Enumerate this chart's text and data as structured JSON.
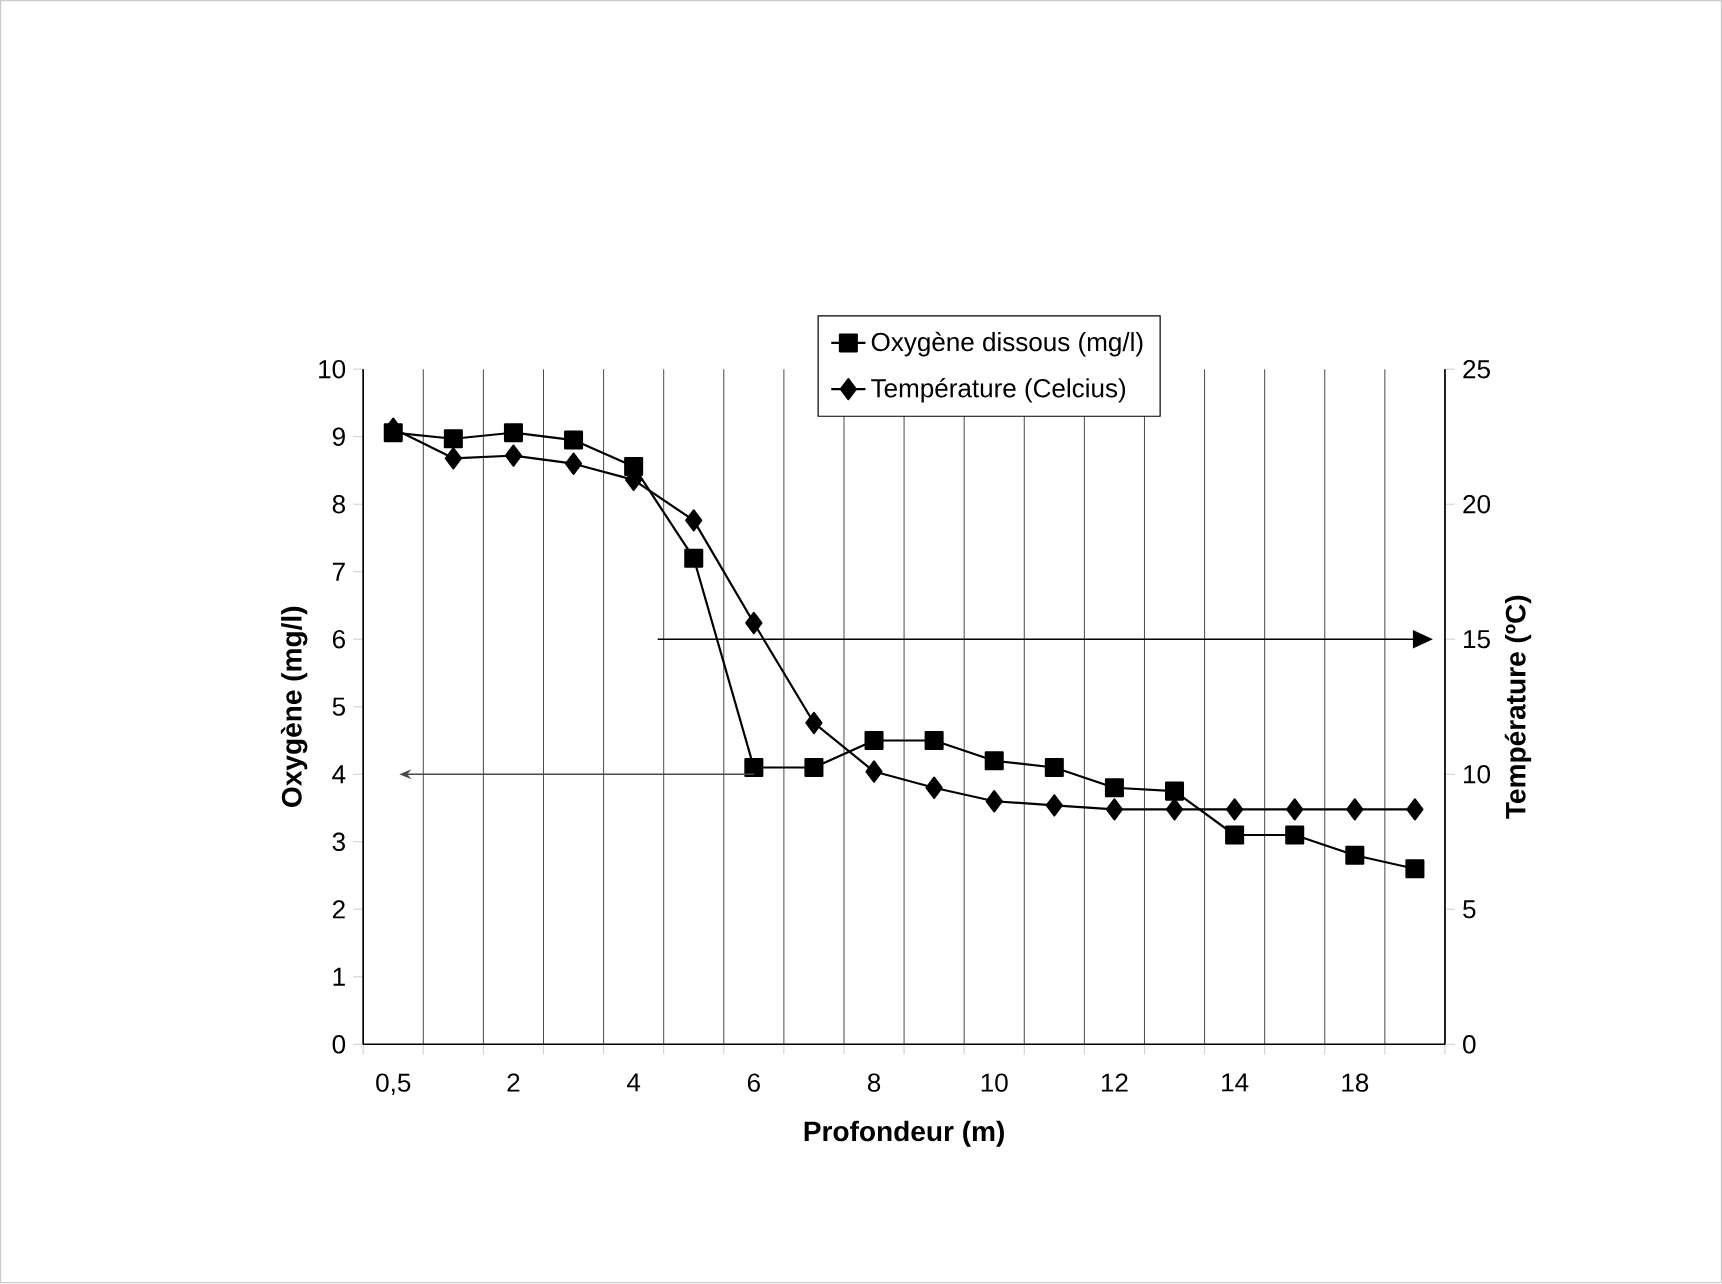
{
  "chart_data": {
    "type": "line",
    "xlabel": "Profondeur (m)",
    "ylabel": "Oxygène (mg/l)",
    "y2label": "Température (ºC)",
    "categories": [
      "0,5",
      null,
      "2",
      null,
      "4",
      null,
      "6",
      null,
      "8",
      null,
      "10",
      null,
      "12",
      null,
      "14",
      null,
      "18",
      null
    ],
    "series": [
      {
        "name": "Oxygène dissous (mg/l)",
        "color": "#000000",
        "marker": "square",
        "values": [
          9.06,
          8.97,
          9.06,
          8.95,
          8.56,
          7.2,
          4.1,
          4.1,
          4.5,
          4.5,
          4.2,
          4.1,
          3.8,
          3.75,
          3.1,
          3.1,
          2.8,
          2.6
        ]
      },
      {
        "name": "Température (Celcius)",
        "color": "#000000",
        "marker": "diamond",
        "axis": "y2",
        "values": [
          22.8,
          21.7,
          21.8,
          21.5,
          20.9,
          19.4,
          15.6,
          11.9,
          10.1,
          9.5,
          9.0,
          8.85,
          8.7,
          8.7,
          8.7,
          8.7,
          8.7,
          8.7
        ]
      }
    ],
    "ylim": [
      0,
      10
    ],
    "yticks": [
      0,
      1,
      2,
      3,
      4,
      5,
      6,
      7,
      8,
      9,
      10
    ],
    "y2lim": [
      0,
      25
    ],
    "y2ticks": [
      0,
      5,
      10,
      15,
      20,
      25
    ],
    "grid": "x",
    "legend": "top right"
  }
}
